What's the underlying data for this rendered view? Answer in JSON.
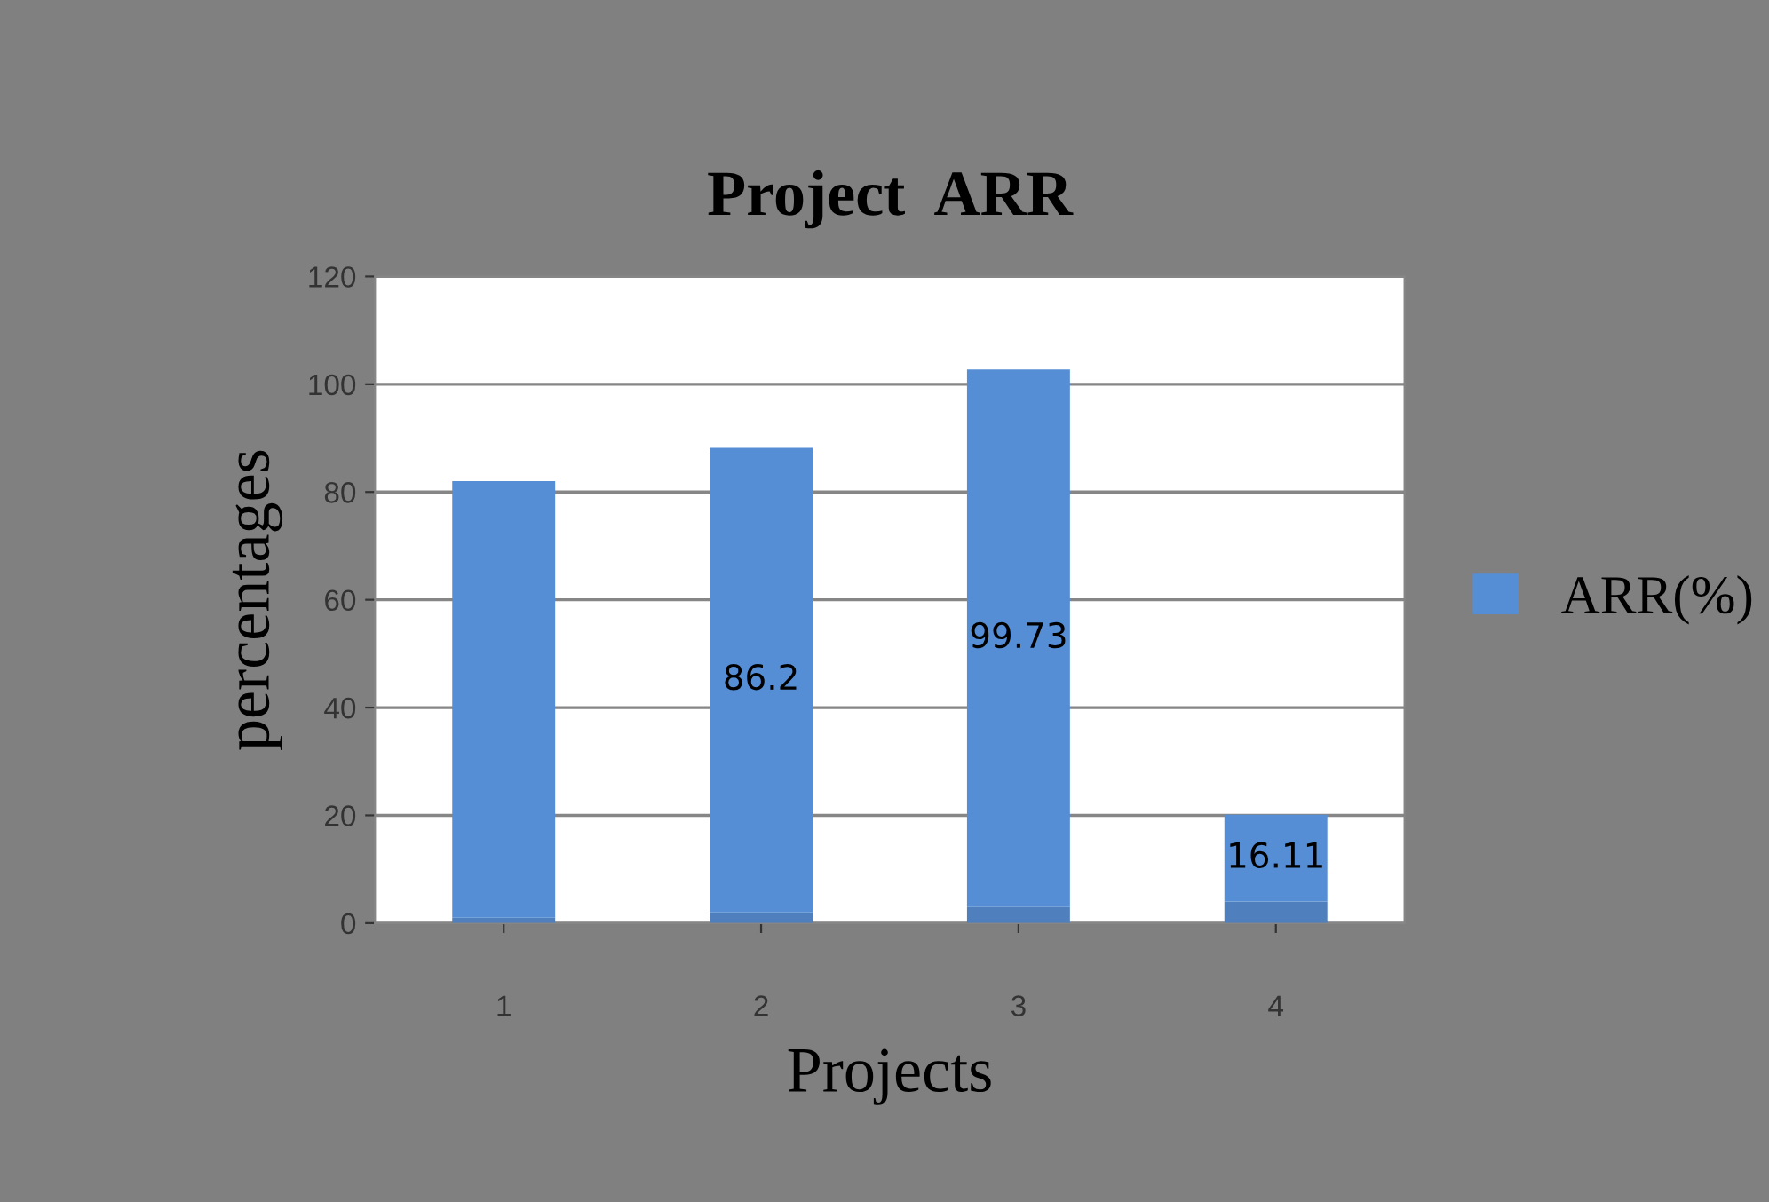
{
  "chart_data": {
    "type": "bar",
    "title": "Project  ARR",
    "xlabel": "Projects",
    "ylabel": "percentages",
    "categories": [
      "1",
      "2",
      "3",
      "4"
    ],
    "stacked": true,
    "series": [
      {
        "color": "#4f7fbc",
        "values": [
          1,
          2,
          3,
          4
        ]
      },
      {
        "name": "ARR(%)",
        "color": "#558ed5",
        "values": [
          81,
          86.2,
          99.73,
          16.11
        ],
        "value_labels": [
          null,
          "86.2",
          "99.73",
          "16.11"
        ]
      }
    ],
    "ylim": [
      0,
      120
    ],
    "yticks": [
      0,
      20,
      40,
      60,
      80,
      100,
      120
    ],
    "grid": "y",
    "legend": "right"
  }
}
